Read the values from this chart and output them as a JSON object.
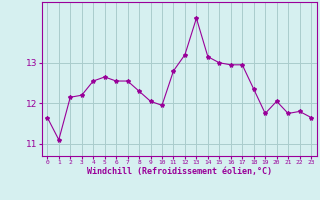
{
  "x": [
    0,
    1,
    2,
    3,
    4,
    5,
    6,
    7,
    8,
    9,
    10,
    11,
    12,
    13,
    14,
    15,
    16,
    17,
    18,
    19,
    20,
    21,
    22,
    23
  ],
  "y": [
    11.65,
    11.1,
    12.15,
    12.2,
    12.55,
    12.65,
    12.55,
    12.55,
    12.3,
    12.05,
    11.95,
    12.8,
    13.2,
    14.1,
    13.15,
    13.0,
    12.95,
    12.95,
    12.35,
    11.75,
    12.05,
    11.75,
    11.8,
    11.65
  ],
  "line_color": "#990099",
  "marker": "*",
  "marker_size": 3,
  "bg_color": "#d6f0f0",
  "grid_color": "#aacccc",
  "xlabel": "Windchill (Refroidissement éolien,°C)",
  "xlabel_color": "#990099",
  "tick_color": "#990099",
  "ylim": [
    10.7,
    14.5
  ],
  "yticks": [
    11,
    12,
    13
  ],
  "xlim": [
    -0.5,
    23.5
  ]
}
